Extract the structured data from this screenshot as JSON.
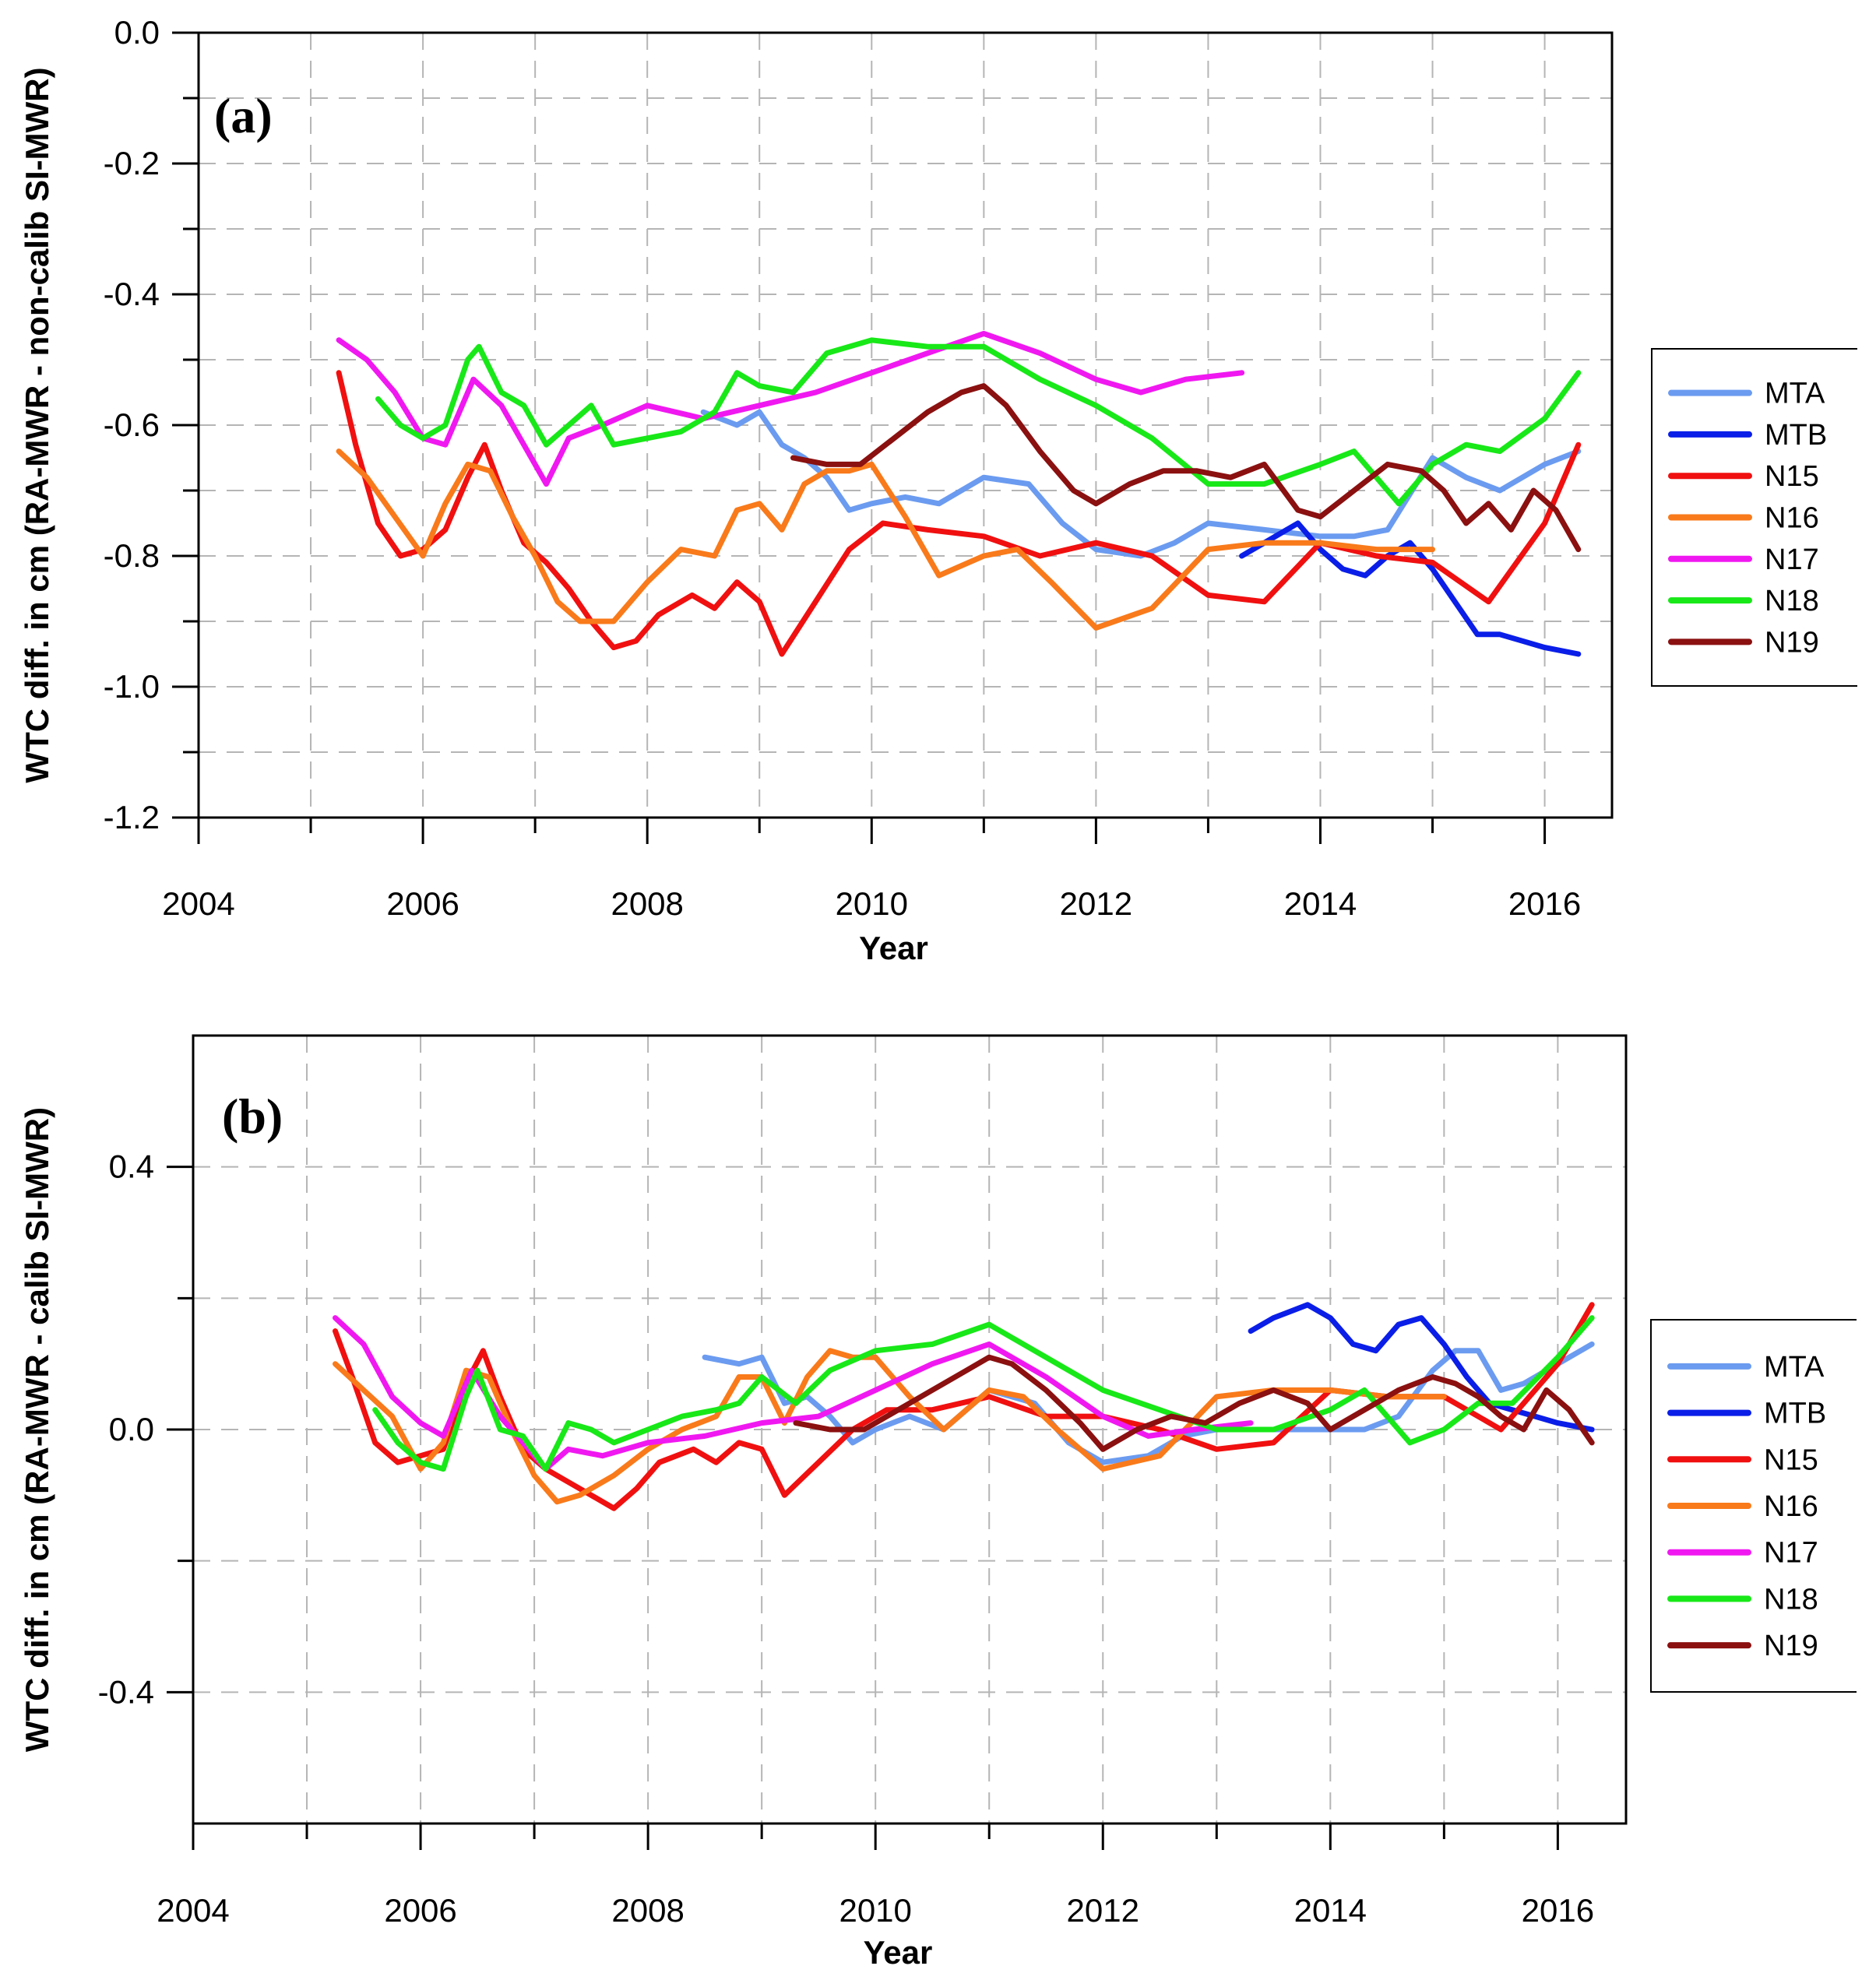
{
  "chart_data": [
    {
      "type": "line",
      "panel_label": "(a)",
      "xlabel": "Year",
      "ylabel": "WTC diff. in cm (RA-MWR - non-calib SI-MWR)",
      "xlim": [
        2004,
        2016.6
      ],
      "ylim": [
        -1.2,
        0.0
      ],
      "xticks": [
        2004,
        2006,
        2008,
        2010,
        2012,
        2014,
        2016
      ],
      "yticks": [
        0.0,
        -0.2,
        -0.4,
        -0.6,
        -0.8,
        -1.0,
        -1.2
      ],
      "ytick_labels": [
        "0.0",
        "-0.2",
        "-0.4",
        "-0.6",
        "-0.8",
        "-1.0",
        "-1.2"
      ],
      "grid": true,
      "legend_position": "right",
      "series": [
        {
          "name": "MTA",
          "color": "#6b9bf0",
          "x": [
            2008.5,
            2008.8,
            2009.0,
            2009.2,
            2009.4,
            2009.6,
            2009.8,
            2010.0,
            2010.3,
            2010.6,
            2011.0,
            2011.4,
            2011.7,
            2012.0,
            2012.4,
            2012.7,
            2013.0,
            2013.5,
            2014.0,
            2014.3,
            2014.6,
            2015.0,
            2015.3,
            2015.6,
            2016.0,
            2016.3
          ],
          "y": [
            -0.58,
            -0.6,
            -0.58,
            -0.63,
            -0.65,
            -0.68,
            -0.73,
            -0.72,
            -0.71,
            -0.72,
            -0.68,
            -0.69,
            -0.75,
            -0.79,
            -0.8,
            -0.78,
            -0.75,
            -0.76,
            -0.77,
            -0.77,
            -0.76,
            -0.65,
            -0.68,
            -0.7,
            -0.66,
            -0.64
          ]
        },
        {
          "name": "MTB",
          "color": "#0a1ee8",
          "x": [
            2013.3,
            2013.5,
            2013.8,
            2014.0,
            2014.2,
            2014.4,
            2014.6,
            2014.8,
            2015.0,
            2015.2,
            2015.4,
            2015.6,
            2015.8,
            2016.0,
            2016.3
          ],
          "y": [
            -0.8,
            -0.78,
            -0.75,
            -0.79,
            -0.82,
            -0.83,
            -0.8,
            -0.78,
            -0.82,
            -0.87,
            -0.92,
            -0.92,
            -0.93,
            -0.94,
            -0.95
          ]
        },
        {
          "name": "N15",
          "color": "#f01010",
          "x": [
            2005.25,
            2005.4,
            2005.6,
            2005.8,
            2006.0,
            2006.2,
            2006.4,
            2006.55,
            2006.7,
            2006.9,
            2007.1,
            2007.3,
            2007.5,
            2007.7,
            2007.9,
            2008.1,
            2008.4,
            2008.6,
            2008.8,
            2009.0,
            2009.2,
            2009.5,
            2009.8,
            2010.1,
            2010.5,
            2011.0,
            2011.5,
            2012.0,
            2012.5,
            2013.0,
            2013.5,
            2014.0,
            2014.5,
            2015.0,
            2015.5,
            2016.0,
            2016.3
          ],
          "y": [
            -0.52,
            -0.63,
            -0.75,
            -0.8,
            -0.79,
            -0.76,
            -0.68,
            -0.63,
            -0.7,
            -0.78,
            -0.81,
            -0.85,
            -0.9,
            -0.94,
            -0.93,
            -0.89,
            -0.86,
            -0.88,
            -0.84,
            -0.87,
            -0.95,
            -0.87,
            -0.79,
            -0.75,
            -0.76,
            -0.77,
            -0.8,
            -0.78,
            -0.8,
            -0.86,
            -0.87,
            -0.78,
            -0.8,
            -0.81,
            -0.87,
            -0.75,
            -0.63
          ]
        },
        {
          "name": "N16",
          "color": "#f97a1a",
          "x": [
            2005.25,
            2005.5,
            2005.75,
            2006.0,
            2006.2,
            2006.4,
            2006.6,
            2006.8,
            2007.0,
            2007.2,
            2007.4,
            2007.7,
            2008.0,
            2008.3,
            2008.6,
            2008.8,
            2009.0,
            2009.2,
            2009.4,
            2009.6,
            2009.8,
            2010.0,
            2010.3,
            2010.6,
            2011.0,
            2011.3,
            2011.6,
            2012.0,
            2012.5,
            2013.0,
            2013.5,
            2014.0,
            2014.5,
            2015.0
          ],
          "y": [
            -0.64,
            -0.68,
            -0.74,
            -0.8,
            -0.72,
            -0.66,
            -0.67,
            -0.74,
            -0.8,
            -0.87,
            -0.9,
            -0.9,
            -0.84,
            -0.79,
            -0.8,
            -0.73,
            -0.72,
            -0.76,
            -0.69,
            -0.67,
            -0.67,
            -0.66,
            -0.74,
            -0.83,
            -0.8,
            -0.79,
            -0.84,
            -0.91,
            -0.88,
            -0.79,
            -0.78,
            -0.78,
            -0.79,
            -0.79
          ]
        },
        {
          "name": "N17",
          "color": "#f018f0",
          "x": [
            2005.25,
            2005.5,
            2005.75,
            2006.0,
            2006.2,
            2006.45,
            2006.7,
            2006.9,
            2007.1,
            2007.3,
            2007.6,
            2008.0,
            2008.5,
            2009.0,
            2009.5,
            2010.0,
            2010.5,
            2011.0,
            2011.5,
            2012.0,
            2012.4,
            2012.8,
            2013.3
          ],
          "y": [
            -0.47,
            -0.5,
            -0.55,
            -0.62,
            -0.63,
            -0.53,
            -0.57,
            -0.63,
            -0.69,
            -0.62,
            -0.6,
            -0.57,
            -0.59,
            -0.57,
            -0.55,
            -0.52,
            -0.49,
            -0.46,
            -0.49,
            -0.53,
            -0.55,
            -0.53,
            -0.52
          ]
        },
        {
          "name": "N18",
          "color": "#18e818",
          "x": [
            2005.6,
            2005.8,
            2006.0,
            2006.2,
            2006.4,
            2006.5,
            2006.7,
            2006.9,
            2007.1,
            2007.3,
            2007.5,
            2007.7,
            2008.0,
            2008.3,
            2008.6,
            2008.8,
            2009.0,
            2009.3,
            2009.6,
            2010.0,
            2010.5,
            2011.0,
            2011.5,
            2012.0,
            2012.5,
            2013.0,
            2013.5,
            2014.0,
            2014.3,
            2014.7,
            2015.0,
            2015.3,
            2015.6,
            2016.0,
            2016.3
          ],
          "y": [
            -0.56,
            -0.6,
            -0.62,
            -0.6,
            -0.5,
            -0.48,
            -0.55,
            -0.57,
            -0.63,
            -0.6,
            -0.57,
            -0.63,
            -0.62,
            -0.61,
            -0.58,
            -0.52,
            -0.54,
            -0.55,
            -0.49,
            -0.47,
            -0.48,
            -0.48,
            -0.53,
            -0.57,
            -0.62,
            -0.69,
            -0.69,
            -0.66,
            -0.64,
            -0.72,
            -0.66,
            -0.63,
            -0.64,
            -0.59,
            -0.52
          ]
        },
        {
          "name": "N19",
          "color": "#8b1010",
          "x": [
            2009.3,
            2009.6,
            2009.9,
            2010.2,
            2010.5,
            2010.8,
            2011.0,
            2011.2,
            2011.5,
            2011.8,
            2012.0,
            2012.3,
            2012.6,
            2012.9,
            2013.2,
            2013.5,
            2013.8,
            2014.0,
            2014.3,
            2014.6,
            2014.9,
            2015.1,
            2015.3,
            2015.5,
            2015.7,
            2015.9,
            2016.1,
            2016.3
          ],
          "y": [
            -0.65,
            -0.66,
            -0.66,
            -0.62,
            -0.58,
            -0.55,
            -0.54,
            -0.57,
            -0.64,
            -0.7,
            -0.72,
            -0.69,
            -0.67,
            -0.67,
            -0.68,
            -0.66,
            -0.73,
            -0.74,
            -0.7,
            -0.66,
            -0.67,
            -0.7,
            -0.75,
            -0.72,
            -0.76,
            -0.7,
            -0.73,
            -0.79
          ]
        }
      ]
    },
    {
      "type": "line",
      "panel_label": "(b)",
      "xlabel": "Year",
      "ylabel": "WTC diff. in cm (RA-MWR - calib SI-MWR)",
      "xlim": [
        2004,
        2016.6
      ],
      "ylim": [
        -0.6,
        0.6
      ],
      "xticks": [
        2004,
        2006,
        2008,
        2010,
        2012,
        2014,
        2016
      ],
      "yticks": [
        0.4,
        0.0,
        -0.4
      ],
      "ytick_labels": [
        "0.4",
        "0.0",
        "-0.4"
      ],
      "grid": true,
      "legend_position": "right",
      "series": [
        {
          "name": "MTA",
          "color": "#6b9bf0",
          "x": [
            2008.5,
            2008.8,
            2009.0,
            2009.2,
            2009.4,
            2009.6,
            2009.8,
            2010.0,
            2010.3,
            2010.6,
            2011.0,
            2011.4,
            2011.7,
            2012.0,
            2012.4,
            2012.7,
            2013.0,
            2013.5,
            2014.0,
            2014.3,
            2014.6,
            2014.9,
            2015.1,
            2015.3,
            2015.5,
            2015.7,
            2016.0,
            2016.3
          ],
          "y": [
            0.11,
            0.1,
            0.11,
            0.04,
            0.05,
            0.02,
            -0.02,
            0.0,
            0.02,
            0.0,
            0.06,
            0.04,
            -0.02,
            -0.05,
            -0.04,
            -0.01,
            0.0,
            0.0,
            0.0,
            0.0,
            0.02,
            0.09,
            0.12,
            0.12,
            0.06,
            0.07,
            0.1,
            0.13
          ]
        },
        {
          "name": "MTB",
          "color": "#0a1ee8",
          "x": [
            2013.3,
            2013.5,
            2013.8,
            2014.0,
            2014.2,
            2014.4,
            2014.6,
            2014.8,
            2015.0,
            2015.2,
            2015.4,
            2015.6,
            2015.8,
            2016.0,
            2016.3
          ],
          "y": [
            0.15,
            0.17,
            0.19,
            0.17,
            0.13,
            0.12,
            0.16,
            0.17,
            0.13,
            0.08,
            0.04,
            0.03,
            0.02,
            0.01,
            0.0
          ]
        },
        {
          "name": "N15",
          "color": "#f01010",
          "x": [
            2005.25,
            2005.4,
            2005.6,
            2005.8,
            2006.0,
            2006.2,
            2006.4,
            2006.55,
            2006.7,
            2006.9,
            2007.1,
            2007.3,
            2007.5,
            2007.7,
            2007.9,
            2008.1,
            2008.4,
            2008.6,
            2008.8,
            2009.0,
            2009.2,
            2009.5,
            2009.8,
            2010.1,
            2010.5,
            2011.0,
            2011.5,
            2012.0,
            2012.5,
            2013.0,
            2013.5,
            2014.0,
            2014.5,
            2015.0,
            2015.5,
            2016.0,
            2016.3
          ],
          "y": [
            0.15,
            0.08,
            -0.02,
            -0.05,
            -0.04,
            -0.03,
            0.07,
            0.12,
            0.05,
            -0.03,
            -0.06,
            -0.08,
            -0.1,
            -0.12,
            -0.09,
            -0.05,
            -0.03,
            -0.05,
            -0.02,
            -0.03,
            -0.1,
            -0.05,
            0.0,
            0.03,
            0.03,
            0.05,
            0.02,
            0.02,
            0.0,
            -0.03,
            -0.02,
            0.06,
            0.05,
            0.05,
            0.0,
            0.1,
            0.19
          ]
        },
        {
          "name": "N16",
          "color": "#f97a1a",
          "x": [
            2005.25,
            2005.5,
            2005.75,
            2006.0,
            2006.2,
            2006.4,
            2006.6,
            2006.8,
            2007.0,
            2007.2,
            2007.4,
            2007.7,
            2008.0,
            2008.3,
            2008.6,
            2008.8,
            2009.0,
            2009.2,
            2009.4,
            2009.6,
            2009.8,
            2010.0,
            2010.3,
            2010.6,
            2011.0,
            2011.3,
            2011.6,
            2012.0,
            2012.5,
            2013.0,
            2013.5,
            2014.0,
            2014.5,
            2015.0
          ],
          "y": [
            0.1,
            0.06,
            0.02,
            -0.06,
            -0.02,
            0.09,
            0.08,
            0.0,
            -0.07,
            -0.11,
            -0.1,
            -0.07,
            -0.03,
            0.0,
            0.02,
            0.08,
            0.08,
            0.01,
            0.08,
            0.12,
            0.11,
            0.11,
            0.05,
            0.0,
            0.06,
            0.05,
            0.0,
            -0.06,
            -0.04,
            0.05,
            0.06,
            0.06,
            0.05,
            0.05
          ]
        },
        {
          "name": "N17",
          "color": "#f018f0",
          "x": [
            2005.25,
            2005.5,
            2005.75,
            2006.0,
            2006.2,
            2006.45,
            2006.7,
            2006.9,
            2007.1,
            2007.3,
            2007.6,
            2008.0,
            2008.5,
            2009.0,
            2009.5,
            2010.0,
            2010.5,
            2011.0,
            2011.5,
            2012.0,
            2012.4,
            2012.8,
            2013.3
          ],
          "y": [
            0.17,
            0.13,
            0.05,
            0.01,
            -0.01,
            0.09,
            0.02,
            -0.02,
            -0.06,
            -0.03,
            -0.04,
            -0.02,
            -0.01,
            0.01,
            0.02,
            0.06,
            0.1,
            0.13,
            0.08,
            0.02,
            -0.01,
            0.0,
            0.01
          ]
        },
        {
          "name": "N18",
          "color": "#18e818",
          "x": [
            2005.6,
            2005.8,
            2006.0,
            2006.2,
            2006.4,
            2006.5,
            2006.7,
            2006.9,
            2007.1,
            2007.3,
            2007.5,
            2007.7,
            2008.0,
            2008.3,
            2008.6,
            2008.8,
            2009.0,
            2009.3,
            2009.6,
            2010.0,
            2010.5,
            2011.0,
            2011.5,
            2012.0,
            2012.5,
            2013.0,
            2013.5,
            2014.0,
            2014.3,
            2014.7,
            2015.0,
            2015.3,
            2015.6,
            2016.0,
            2016.3
          ],
          "y": [
            0.03,
            -0.02,
            -0.05,
            -0.06,
            0.05,
            0.09,
            0.0,
            -0.01,
            -0.06,
            0.01,
            0.0,
            -0.02,
            0.0,
            0.02,
            0.03,
            0.04,
            0.08,
            0.04,
            0.09,
            0.12,
            0.13,
            0.16,
            0.11,
            0.06,
            0.03,
            0.0,
            0.0,
            0.03,
            0.06,
            -0.02,
            0.0,
            0.04,
            0.04,
            0.11,
            0.17
          ]
        },
        {
          "name": "N19",
          "color": "#8b1010",
          "x": [
            2009.3,
            2009.6,
            2009.9,
            2010.2,
            2010.5,
            2010.8,
            2011.0,
            2011.2,
            2011.5,
            2011.8,
            2012.0,
            2012.3,
            2012.6,
            2012.9,
            2013.2,
            2013.5,
            2013.8,
            2014.0,
            2014.3,
            2014.6,
            2014.9,
            2015.1,
            2015.3,
            2015.5,
            2015.7,
            2015.9,
            2016.1,
            2016.3
          ],
          "y": [
            0.01,
            0.0,
            0.0,
            0.03,
            0.06,
            0.09,
            0.11,
            0.1,
            0.06,
            0.01,
            -0.03,
            0.0,
            0.02,
            0.01,
            0.04,
            0.06,
            0.04,
            0.0,
            0.03,
            0.06,
            0.08,
            0.07,
            0.05,
            0.02,
            0.0,
            0.06,
            0.03,
            -0.02
          ]
        }
      ]
    }
  ]
}
